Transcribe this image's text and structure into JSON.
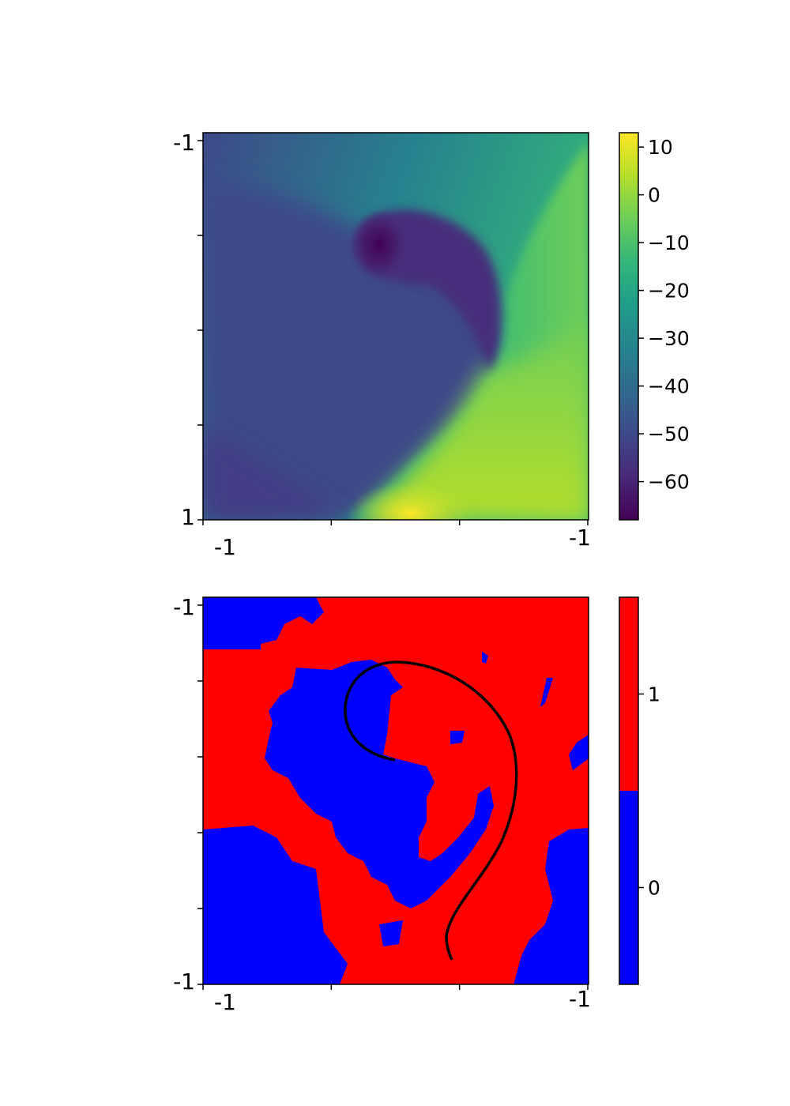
{
  "chart_data": [
    {
      "type": "heatmap",
      "title": "",
      "colormap": "viridis",
      "x_tick_labels": [
        "-1",
        "",
        "",
        "-1"
      ],
      "y_tick_labels": [
        "-1",
        "",
        "",
        "",
        "1"
      ],
      "colorbar": {
        "range": [
          -68,
          13
        ],
        "ticks": [
          10,
          0,
          -10,
          -20,
          -30,
          -40,
          -50,
          -60
        ],
        "tick_labels": [
          "10",
          "0",
          "−10",
          "−20",
          "−30",
          "−40",
          "−50",
          "−60"
        ]
      },
      "description_values": {
        "min_approx": -68,
        "max_approx": 13
      }
    },
    {
      "type": "heatmap",
      "title": "",
      "colormap": "binary blue/red",
      "x_tick_labels": [
        "-1",
        "",
        "",
        "-1"
      ],
      "y_tick_labels": [
        "-1",
        "",
        "",
        "",
        "",
        "-1"
      ],
      "colorbar": {
        "range": [
          -0.5,
          1.5
        ],
        "ticks": [
          1,
          0
        ],
        "tick_labels": [
          "1",
          "0"
        ],
        "colors": [
          "#0000ff",
          "#ff0000"
        ]
      },
      "has_curve_overlay": true
    }
  ],
  "colors": {
    "class0": "#0000ff",
    "class1": "#ff0000",
    "viridis": [
      "#440154",
      "#482878",
      "#3e4989",
      "#31688e",
      "#26828e",
      "#1f9e89",
      "#35b779",
      "#6ece58",
      "#b5de2b",
      "#fde725"
    ]
  }
}
